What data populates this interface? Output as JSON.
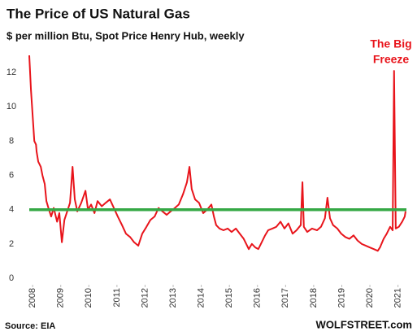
{
  "chart_data": {
    "type": "line",
    "title": "The Price of US Natural Gas",
    "subtitle": "$ per million Btu, Spot Price Henry Hub, weekly",
    "annotation": [
      "The Big",
      "Freeze"
    ],
    "source": "Source: EIA",
    "brand": "WOLFSTREET.com",
    "xlim": [
      2007.88,
      2021.3
    ],
    "xticks": [
      2008,
      2009,
      2010,
      2011,
      2012,
      2013,
      2014,
      2015,
      2016,
      2017,
      2018,
      2019,
      2020,
      2021
    ],
    "ylim": [
      0,
      13.1
    ],
    "yticks": [
      0,
      2,
      4,
      6,
      8,
      10,
      12
    ],
    "reference_line": {
      "value": 4,
      "color": "#35a845"
    },
    "x": [
      2007.88,
      2007.94,
      2008.06,
      2008.12,
      2008.14,
      2008.2,
      2008.29,
      2008.35,
      2008.43,
      2008.49,
      2008.58,
      2008.66,
      2008.75,
      2008.87,
      2008.95,
      2009.04,
      2009.13,
      2009.21,
      2009.33,
      2009.42,
      2009.5,
      2009.59,
      2009.73,
      2009.88,
      2009.97,
      2010.08,
      2010.2,
      2010.31,
      2010.46,
      2010.6,
      2010.75,
      2010.89,
      2011.03,
      2011.18,
      2011.32,
      2011.47,
      2011.61,
      2011.76,
      2011.9,
      2012.05,
      2012.19,
      2012.34,
      2012.48,
      2012.62,
      2012.77,
      2012.91,
      2013.06,
      2013.2,
      2013.35,
      2013.49,
      2013.58,
      2013.66,
      2013.78,
      2013.92,
      2014.07,
      2014.21,
      2014.36,
      2014.45,
      2014.53,
      2014.65,
      2014.79,
      2014.94,
      2015.08,
      2015.23,
      2015.37,
      2015.51,
      2015.6,
      2015.69,
      2015.8,
      2015.92,
      2016.03,
      2016.15,
      2016.27,
      2016.38,
      2016.53,
      2016.67,
      2016.82,
      2016.96,
      2017.1,
      2017.25,
      2017.39,
      2017.54,
      2017.6,
      2017.65,
      2017.77,
      2017.94,
      2018.12,
      2018.26,
      2018.4,
      2018.49,
      2018.58,
      2018.69,
      2018.84,
      2018.98,
      2019.13,
      2019.27,
      2019.42,
      2019.56,
      2019.71,
      2019.85,
      2019.99,
      2020.14,
      2020.28,
      2020.36,
      2020.49,
      2020.6,
      2020.72,
      2020.81,
      2020.86,
      2020.92,
      2021.03,
      2021.15,
      2021.24,
      2021.27
    ],
    "series": [
      {
        "name": "Henry Hub",
        "color": "#e8141b",
        "values": [
          13,
          11,
          8,
          7.8,
          7.4,
          6.8,
          6.5,
          6,
          5.5,
          4.5,
          4,
          3.6,
          4.1,
          3.3,
          3.8,
          2.1,
          3.4,
          3.8,
          4.4,
          6.5,
          4.6,
          3.9,
          4.4,
          5.1,
          4,
          4.3,
          3.8,
          4.5,
          4.2,
          4.4,
          4.6,
          4.1,
          3.6,
          3.1,
          2.6,
          2.4,
          2.1,
          1.9,
          2.6,
          3,
          3.4,
          3.6,
          4.1,
          3.9,
          3.7,
          3.9,
          4.1,
          4.3,
          4.9,
          5.6,
          6.5,
          5.2,
          4.6,
          4.4,
          3.8,
          4,
          4.3,
          3.6,
          3.1,
          2.9,
          2.8,
          2.9,
          2.7,
          2.9,
          2.6,
          2.3,
          2,
          1.7,
          2,
          1.8,
          1.7,
          2.1,
          2.5,
          2.8,
          2.9,
          3,
          3.3,
          2.9,
          3.2,
          2.6,
          2.8,
          3.1,
          5.6,
          3,
          2.7,
          2.9,
          2.8,
          3,
          3.5,
          4.7,
          3.5,
          3.1,
          2.9,
          2.6,
          2.4,
          2.3,
          2.5,
          2.2,
          2,
          1.9,
          1.8,
          1.7,
          1.6,
          1.8,
          2.3,
          2.6,
          3,
          2.8,
          12.1,
          2.9,
          3,
          3.3,
          3.6,
          3.9
        ]
      }
    ]
  }
}
